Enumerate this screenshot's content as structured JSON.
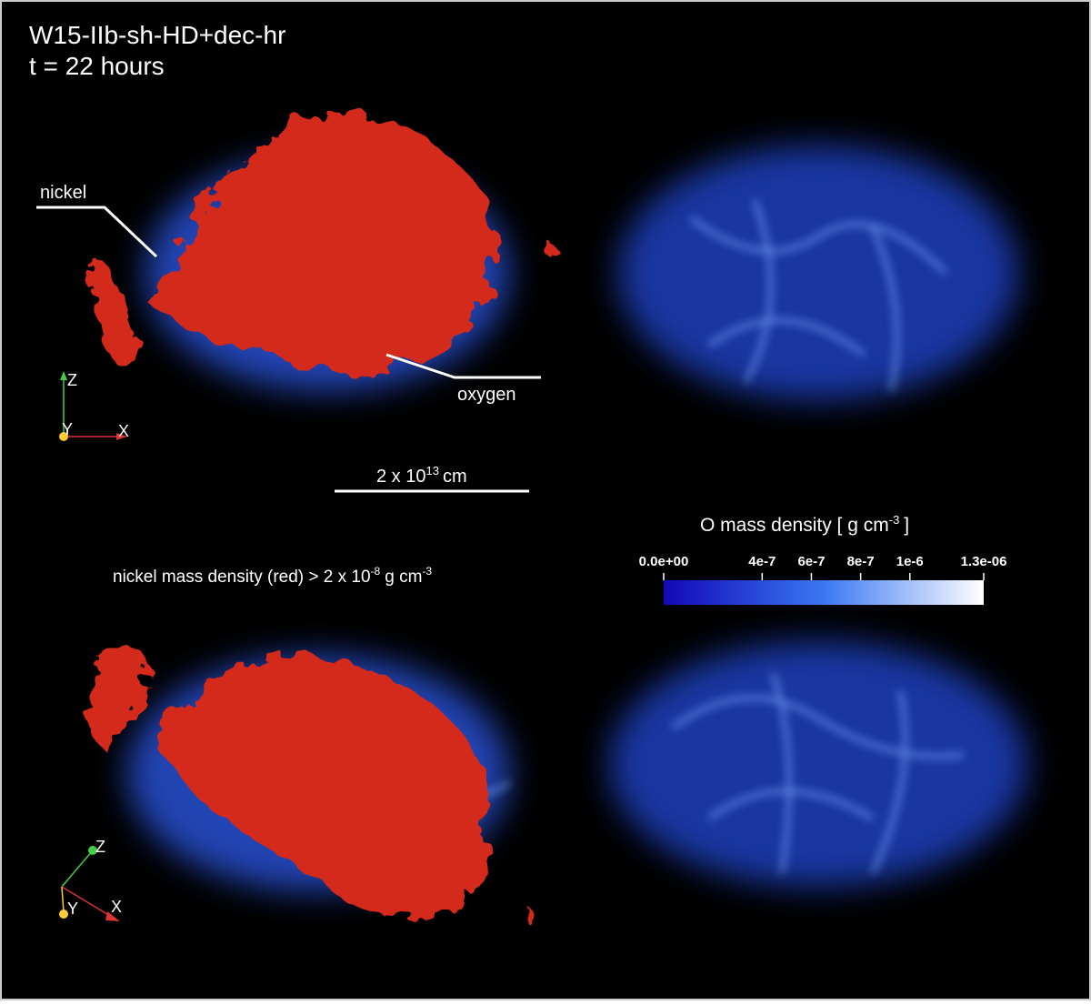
{
  "title": "W15-IIb-sh-HD+dec-hr",
  "time": "t = 22 hours",
  "annotations": {
    "nickel": "nickel",
    "oxygen": "oxygen"
  },
  "axes_top": {
    "z": "Z",
    "y": "Y",
    "x": "X"
  },
  "axes_bottom": {
    "z": "Z",
    "y": "Y",
    "x": "X"
  },
  "scale_bar": {
    "base": "2 x 10",
    "exponent": "13",
    "unit": "cm"
  },
  "nickel_threshold": {
    "text": "nickel mass density (red) > 2 x 10",
    "exponent": "-8",
    "unit": "g cm",
    "unit_exponent": "-3"
  },
  "colorbar": {
    "title": "O mass density [ g cm",
    "title_exponent": "-3",
    "title_end": "]",
    "range": [
      0,
      1.3e-06
    ],
    "ticks": [
      {
        "value": 0,
        "label": "0.0e+00"
      },
      {
        "value": 4e-07,
        "label": "4e-7"
      },
      {
        "value": 6e-07,
        "label": "6e-7"
      },
      {
        "value": 8e-07,
        "label": "8e-7"
      },
      {
        "value": 1e-06,
        "label": "1e-6"
      },
      {
        "value": 1.3e-06,
        "label": "1.3e-06"
      }
    ],
    "colors": [
      "#1208b8",
      "#3a78f2",
      "#ffffff"
    ]
  }
}
